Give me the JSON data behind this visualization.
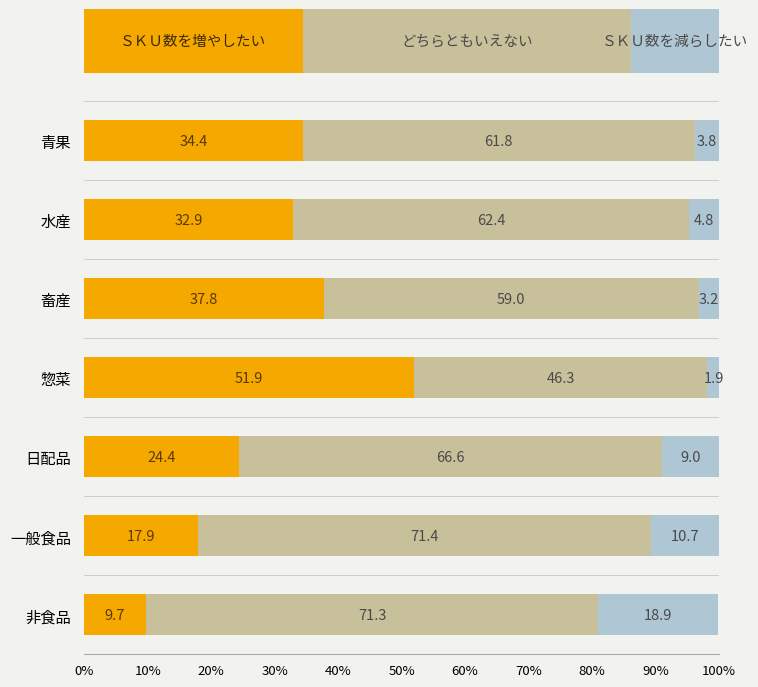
{
  "categories": [
    "青果",
    "水産",
    "畜産",
    "惣菜",
    "日配品",
    "一般食品",
    "非食品"
  ],
  "increase": [
    34.4,
    32.9,
    37.8,
    51.9,
    24.4,
    17.9,
    9.7
  ],
  "neutral": [
    61.8,
    62.4,
    59.0,
    46.3,
    66.6,
    71.4,
    71.3
  ],
  "decrease": [
    3.8,
    4.8,
    3.2,
    1.9,
    9.0,
    10.7,
    18.9
  ],
  "color_increase": "#F5A800",
  "color_neutral": "#C8C09A",
  "color_decrease": "#AFC6D5",
  "legend_labels": [
    "ＳＫＵ数を増やしたい",
    "どちらともいえない",
    "ＳＫＵ数を減らしたい"
  ],
  "legend_proportions": [
    34.4,
    51.8,
    13.8
  ],
  "background_color": "#F2F2EE",
  "bar_height": 0.52,
  "xlim": [
    0,
    100
  ],
  "xticks": [
    0,
    10,
    20,
    30,
    40,
    50,
    60,
    70,
    80,
    90,
    100
  ],
  "xtick_labels": [
    "0%",
    "10%",
    "20%",
    "30%",
    "40%",
    "50%",
    "60%",
    "70%",
    "80%",
    "90%",
    "100%"
  ],
  "label_fontsize": 10.5,
  "tick_fontsize": 9.5,
  "category_fontsize": 11,
  "legend_fontsize": 10.5,
  "value_color_increase": "#5a3a00",
  "value_color_neutral": "#4a4a4a",
  "value_color_decrease": "#4a4a4a"
}
